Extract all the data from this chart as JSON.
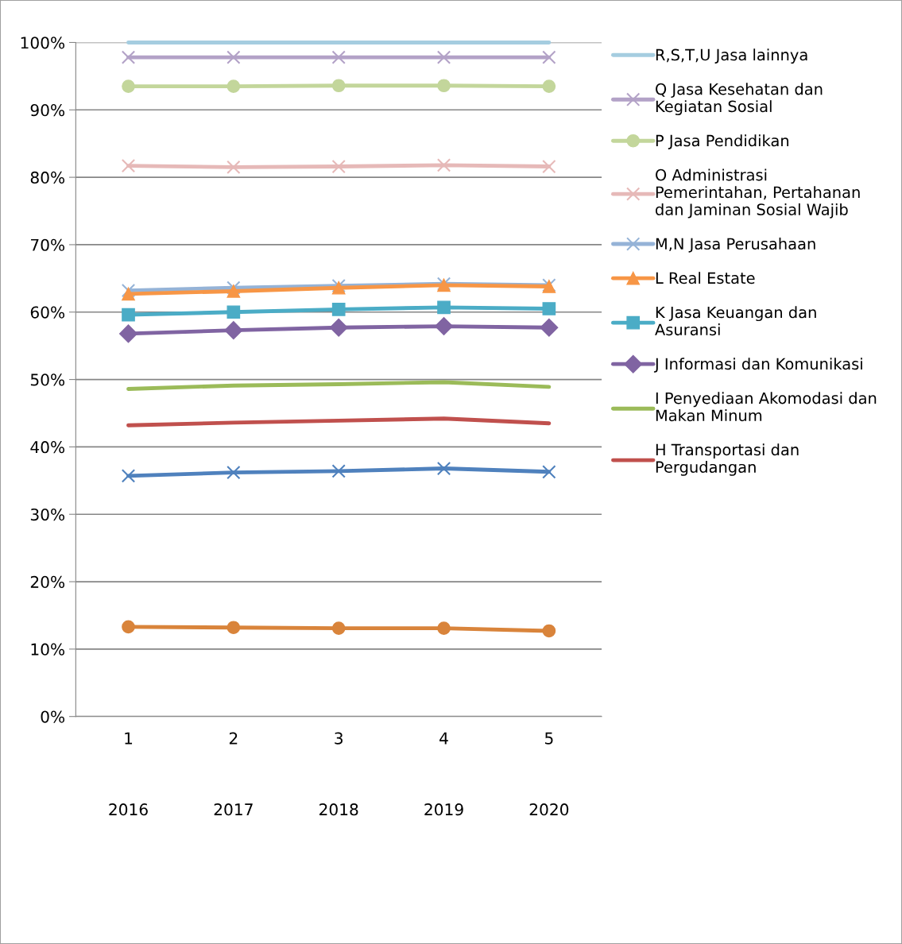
{
  "chart_data": {
    "type": "line",
    "categories": [
      "1",
      "2",
      "3",
      "4",
      "5"
    ],
    "ylim": [
      0,
      100
    ],
    "yticks": [
      {
        "value": 0,
        "label": "0%"
      },
      {
        "value": 10,
        "label": "10%"
      },
      {
        "value": 20,
        "label": "20%"
      },
      {
        "value": 30,
        "label": "30%"
      },
      {
        "value": 40,
        "label": "40%"
      },
      {
        "value": 50,
        "label": "50%"
      },
      {
        "value": 60,
        "label": "60%"
      },
      {
        "value": 70,
        "label": "70%"
      },
      {
        "value": 80,
        "label": "80%"
      },
      {
        "value": 90,
        "label": "90%"
      },
      {
        "value": 100,
        "label": "100%"
      }
    ],
    "grid": "y",
    "legend": "right",
    "line_style": "solid",
    "annotations": [
      "2016",
      "2017",
      "2018",
      "2019",
      "2020"
    ],
    "series": [
      {
        "name": "R,S,T,U Jasa lainnya",
        "color": "#a5cde0",
        "marker": "none",
        "values": [
          100,
          100,
          100,
          100,
          100
        ]
      },
      {
        "name": "Q Jasa Kesehatan dan Kegiatan Sosial",
        "color": "#b3a2c7",
        "marker": "cross",
        "values": [
          97.8,
          97.8,
          97.8,
          97.8,
          97.8
        ]
      },
      {
        "name": "P Jasa Pendidikan",
        "color": "#c3d69b",
        "marker": "circle",
        "values": [
          93.5,
          93.5,
          93.6,
          93.6,
          93.5
        ]
      },
      {
        "name": "O Administrasi Pemerintahan, Pertahanan dan Jaminan Sosial Wajib",
        "color": "#e6b9b8",
        "marker": "cross",
        "values": [
          81.7,
          81.5,
          81.6,
          81.8,
          81.6
        ]
      },
      {
        "name": "M,N Jasa Perusahaan",
        "color": "#95b3d7",
        "marker": "cross",
        "values": [
          63.2,
          63.6,
          63.9,
          64.2,
          64.0
        ]
      },
      {
        "name": "L Real Estate",
        "color": "#f79646",
        "marker": "triangle",
        "values": [
          62.7,
          63.1,
          63.6,
          64.0,
          63.8
        ]
      },
      {
        "name": "K Jasa Keuangan dan Asuransi",
        "color": "#4bacc6",
        "marker": "square",
        "values": [
          59.6,
          60.0,
          60.4,
          60.7,
          60.5
        ]
      },
      {
        "name": "J Informasi dan Komunikasi",
        "color": "#8064a2",
        "marker": "diamond",
        "values": [
          56.8,
          57.3,
          57.7,
          57.9,
          57.7
        ]
      },
      {
        "name": "I Penyediaan Akomodasi dan Makan Minum",
        "color": "#9bbb59",
        "marker": "none",
        "values": [
          48.6,
          49.1,
          49.3,
          49.6,
          48.9
        ]
      },
      {
        "name": "H Transportasi dan Pergudangan",
        "color": "#c0504d",
        "marker": "none",
        "values": [
          43.2,
          43.6,
          43.9,
          44.2,
          43.5
        ]
      },
      {
        "color": "#4f81bd",
        "marker": "cross",
        "values": [
          35.7,
          36.2,
          36.4,
          36.8,
          36.3
        ]
      },
      {
        "color": "#d9843b",
        "marker": "circle",
        "values": [
          13.3,
          13.2,
          13.1,
          13.1,
          12.7
        ]
      }
    ]
  }
}
